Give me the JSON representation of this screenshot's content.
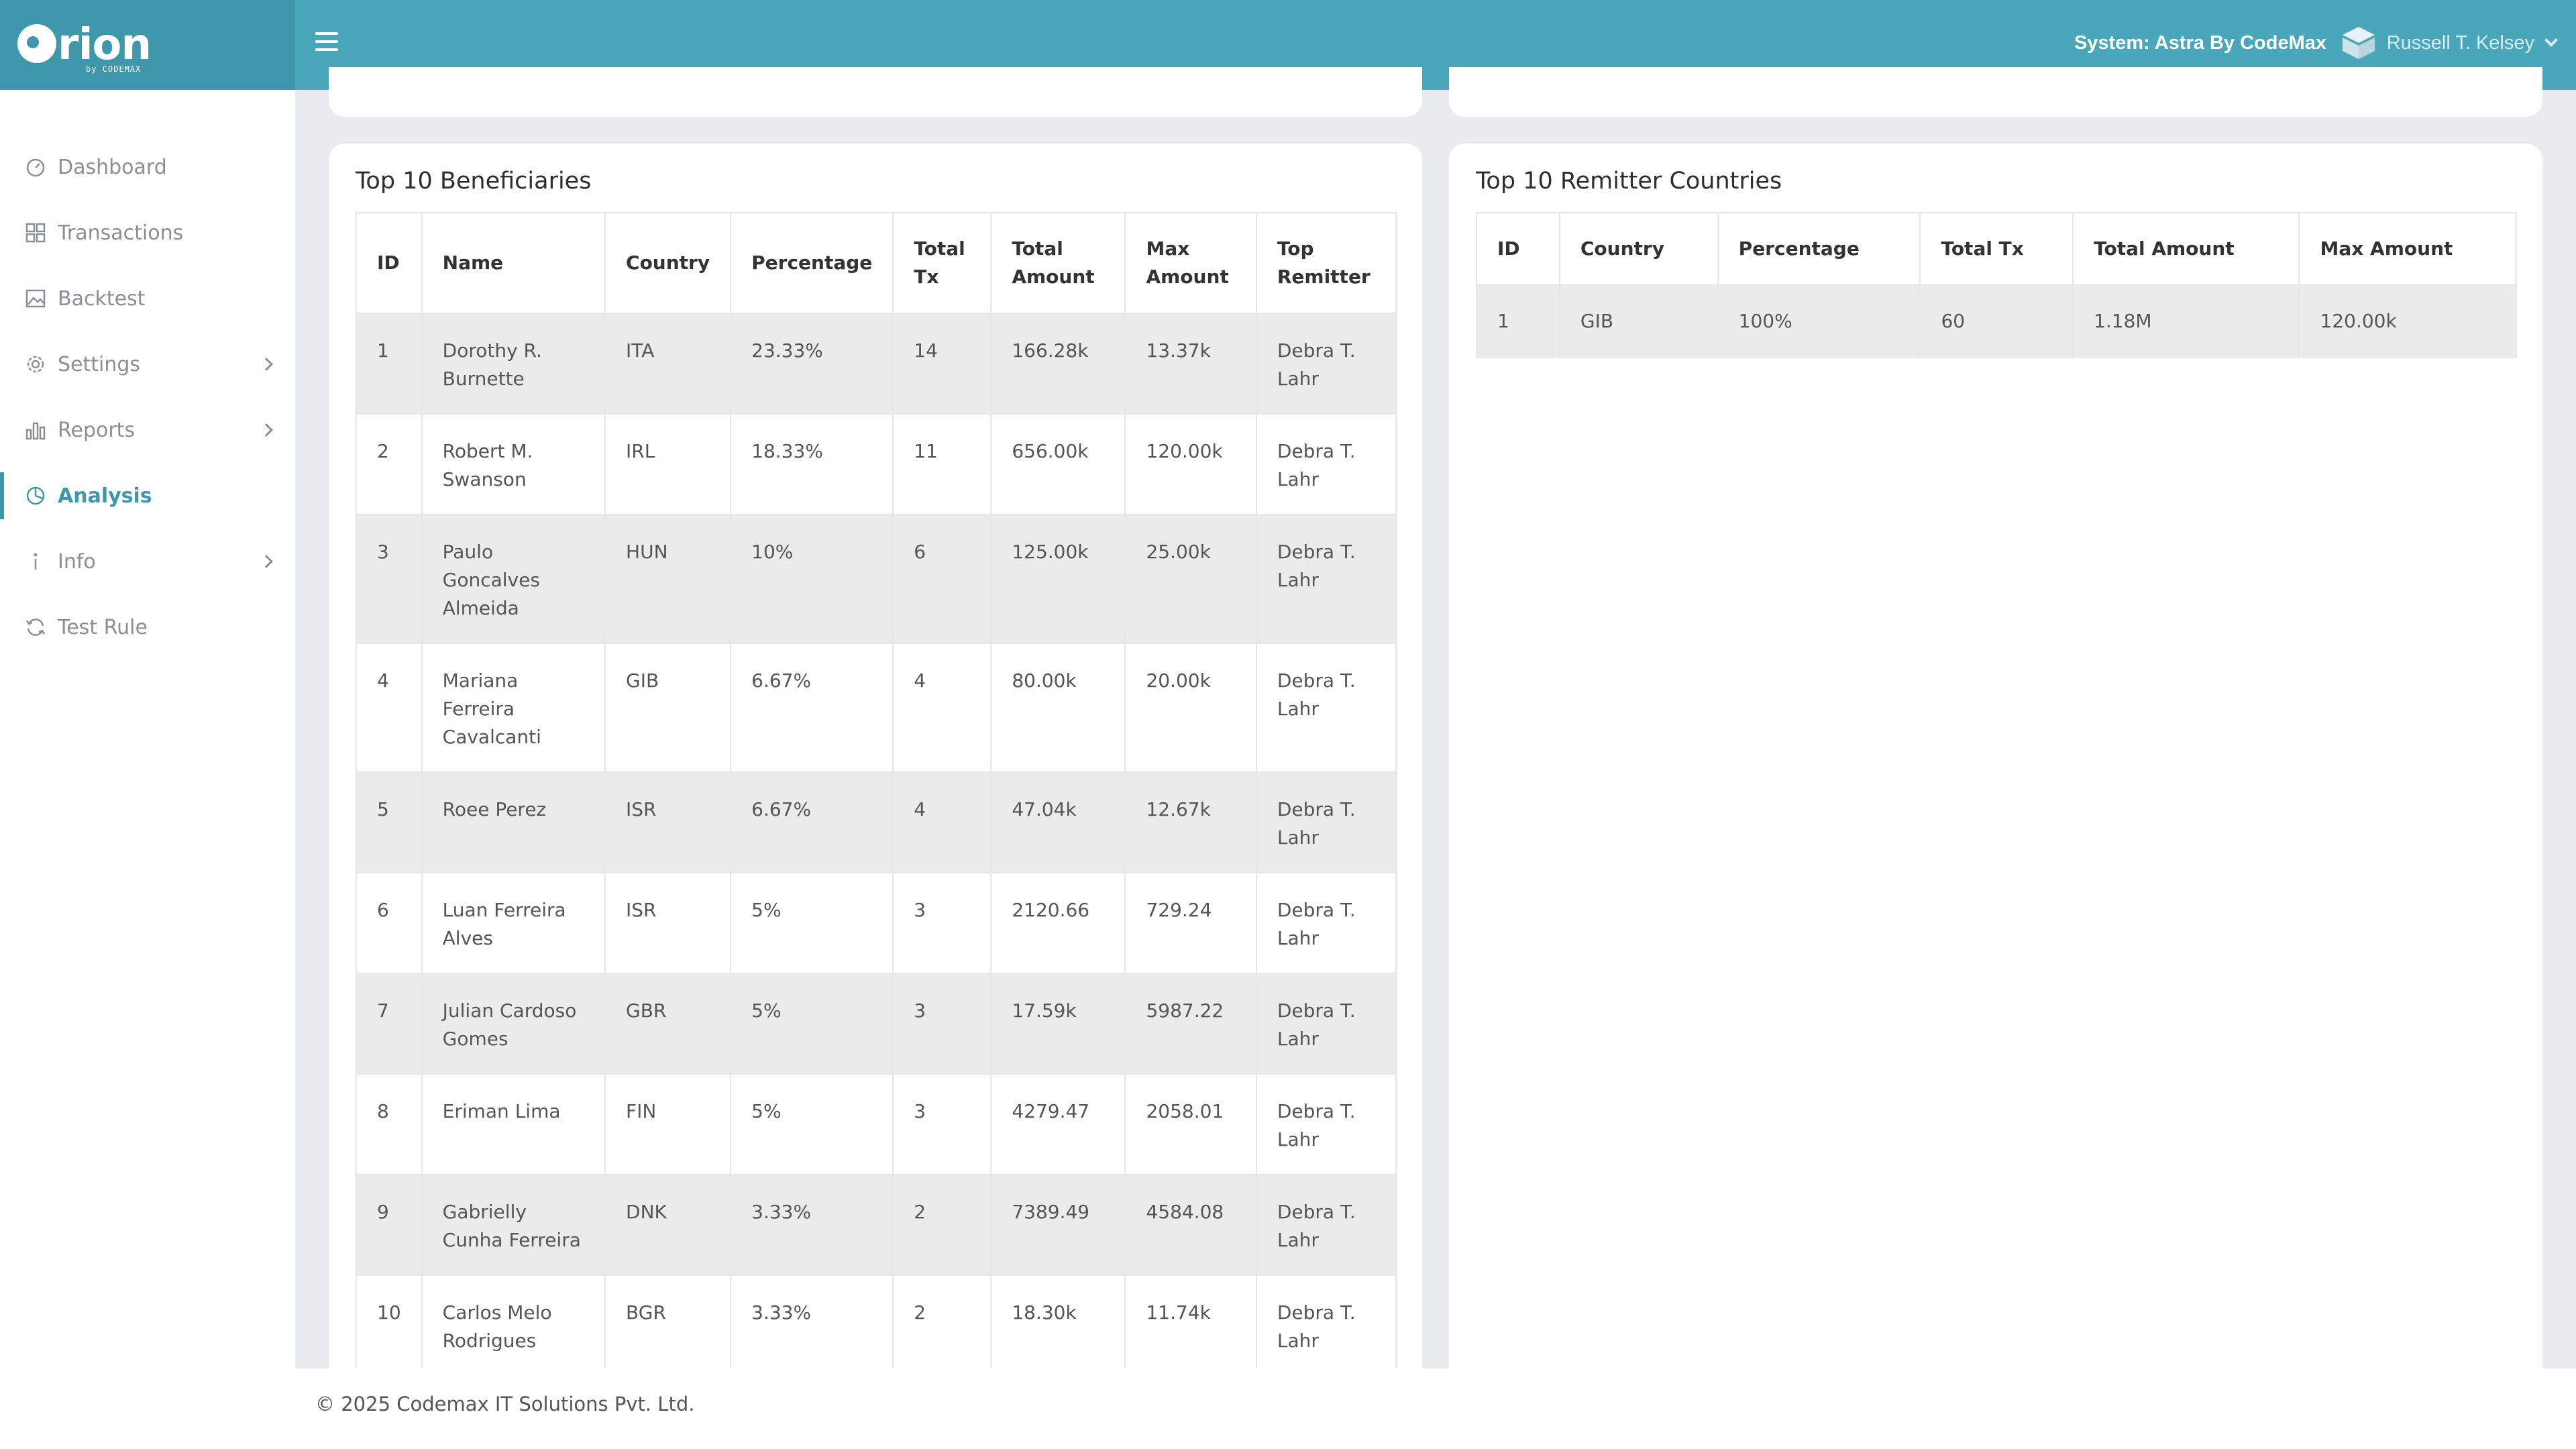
{
  "header": {
    "brand": "rion",
    "brand_sub": "by CODEMAX",
    "system_label": "System: Astra By CodeMax",
    "user_name": "Russell T. Kelsey"
  },
  "sidebar": {
    "items": [
      {
        "label": "Dashboard",
        "icon": "dashboard-icon"
      },
      {
        "label": "Transactions",
        "icon": "grid-icon"
      },
      {
        "label": "Backtest",
        "icon": "image-icon"
      },
      {
        "label": "Settings",
        "icon": "gear-icon"
      },
      {
        "label": "Reports",
        "icon": "bar-chart-icon"
      },
      {
        "label": "Analysis",
        "icon": "pie-chart-icon"
      },
      {
        "label": "Info",
        "icon": "info-icon"
      },
      {
        "label": "Test Rule",
        "icon": "refresh-icon"
      }
    ]
  },
  "beneficiaries": {
    "title": "Top 10 Beneficiaries",
    "headers": [
      "ID",
      "Name",
      "Country",
      "Percentage",
      "Total Tx",
      "Total Amount",
      "Max Amount",
      "Top Remitter"
    ],
    "rows": [
      [
        "1",
        "Dorothy R. Burnette",
        "ITA",
        "23.33%",
        "14",
        "166.28k",
        "13.37k",
        "Debra T. Lahr"
      ],
      [
        "2",
        "Robert M. Swanson",
        "IRL",
        "18.33%",
        "11",
        "656.00k",
        "120.00k",
        "Debra T. Lahr"
      ],
      [
        "3",
        "Paulo Goncalves Almeida",
        "HUN",
        "10%",
        "6",
        "125.00k",
        "25.00k",
        "Debra T. Lahr"
      ],
      [
        "4",
        "Mariana Ferreira Cavalcanti",
        "GIB",
        "6.67%",
        "4",
        "80.00k",
        "20.00k",
        "Debra T. Lahr"
      ],
      [
        "5",
        "Roee Perez",
        "ISR",
        "6.67%",
        "4",
        "47.04k",
        "12.67k",
        "Debra T. Lahr"
      ],
      [
        "6",
        "Luan Ferreira Alves",
        "ISR",
        "5%",
        "3",
        "2120.66",
        "729.24",
        "Debra T. Lahr"
      ],
      [
        "7",
        "Julian Cardoso Gomes",
        "GBR",
        "5%",
        "3",
        "17.59k",
        "5987.22",
        "Debra T. Lahr"
      ],
      [
        "8",
        "Eriman Lima",
        "FIN",
        "5%",
        "3",
        "4279.47",
        "2058.01",
        "Debra T. Lahr"
      ],
      [
        "9",
        "Gabrielly Cunha Ferreira",
        "DNK",
        "3.33%",
        "2",
        "7389.49",
        "4584.08",
        "Debra T. Lahr"
      ],
      [
        "10",
        "Carlos Melo Rodrigues",
        "BGR",
        "3.33%",
        "2",
        "18.30k",
        "11.74k",
        "Debra T. Lahr"
      ]
    ]
  },
  "remitter_countries": {
    "title": "Top 10 Remitter Countries",
    "headers": [
      "ID",
      "Country",
      "Percentage",
      "Total Tx",
      "Total Amount",
      "Max Amount"
    ],
    "rows": [
      [
        "1",
        "GIB",
        "100%",
        "60",
        "1.18M",
        "120.00k"
      ]
    ]
  },
  "footer": {
    "text": "© 2025 Codemax IT Solutions Pvt. Ltd."
  }
}
